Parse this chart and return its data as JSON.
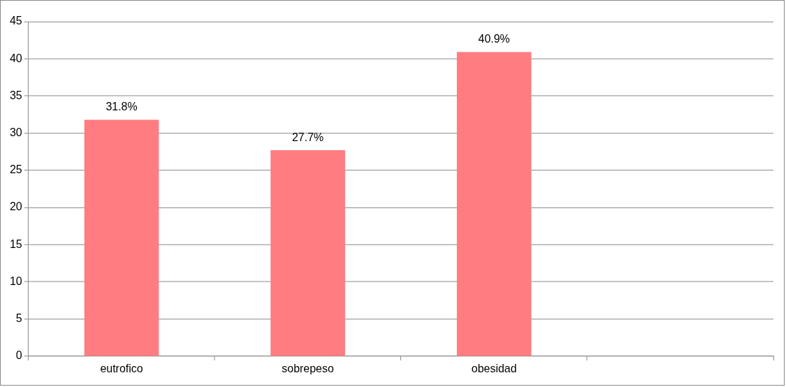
{
  "chart_data": {
    "type": "bar",
    "categories": [
      "eutrofico",
      "sobrepeso",
      "obesidad",
      null
    ],
    "values": [
      31.8,
      27.7,
      40.9,
      null
    ],
    "value_labels": [
      "31.8%",
      "27.7%",
      "40.9%",
      null
    ],
    "color": "#ff7c80",
    "ylim": [
      0,
      45
    ],
    "yticks": [
      0,
      5,
      10,
      15,
      20,
      25,
      30,
      35,
      40,
      45
    ],
    "grid": "y",
    "legend": false
  }
}
